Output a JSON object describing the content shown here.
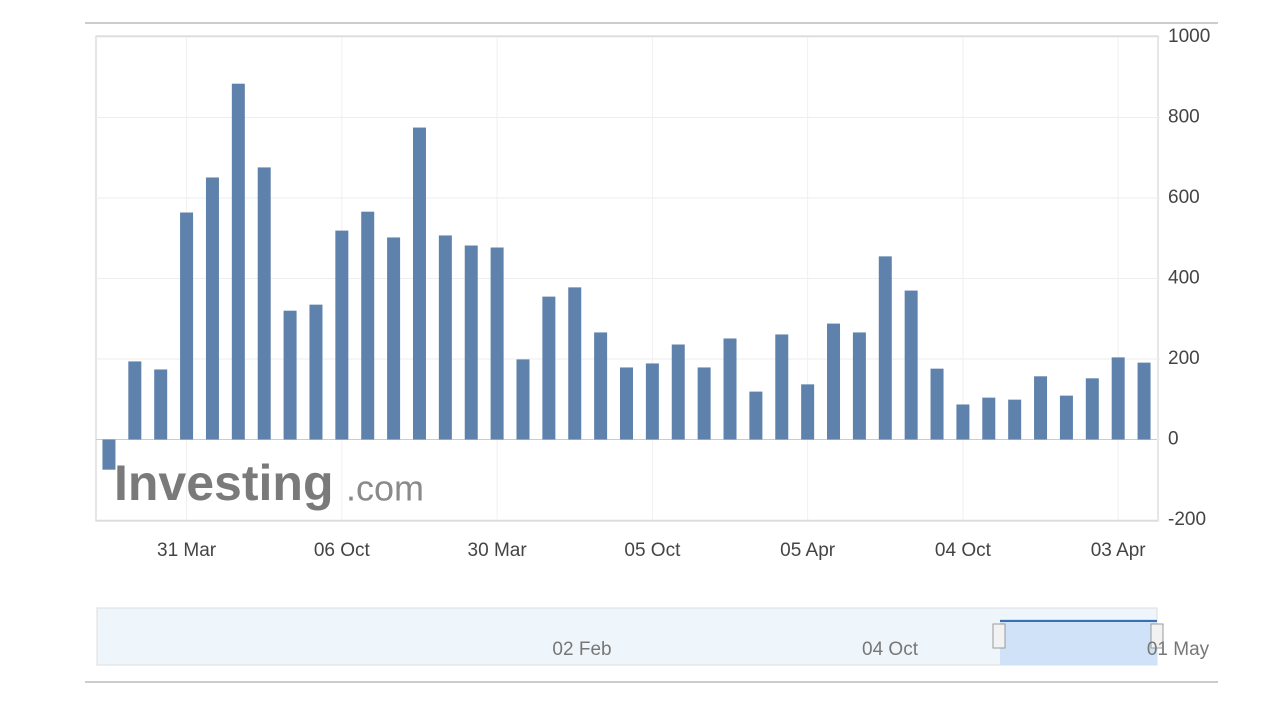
{
  "chart_data": {
    "type": "bar",
    "categories": [
      null,
      null,
      null,
      "31 Mar",
      null,
      null,
      null,
      null,
      null,
      "06 Oct",
      null,
      null,
      null,
      null,
      null,
      "30 Mar",
      null,
      null,
      null,
      null,
      null,
      "05 Oct",
      null,
      null,
      null,
      null,
      null,
      "05 Apr",
      null,
      null,
      null,
      null,
      null,
      "04 Oct",
      null,
      null,
      null,
      null,
      null,
      "03 Apr",
      null
    ],
    "values": [
      -75,
      194,
      174,
      564,
      651,
      884,
      676,
      320,
      335,
      519,
      566,
      502,
      775,
      507,
      482,
      477,
      199,
      355,
      378,
      266,
      179,
      189,
      236,
      179,
      251,
      119,
      261,
      137,
      288,
      266,
      455,
      370,
      176,
      87,
      104,
      99,
      157,
      109,
      152,
      204,
      191
    ],
    "color": "#5f82ac",
    "ylim": [
      -200,
      1000
    ],
    "yticks": [
      -200,
      0,
      200,
      400,
      600,
      800,
      1000
    ],
    "grid": true,
    "watermark": {
      "brand": "Investing",
      "suffix": ".com"
    },
    "navigator_labels": [
      "02 Feb",
      "04 Oct",
      "01 May"
    ]
  }
}
